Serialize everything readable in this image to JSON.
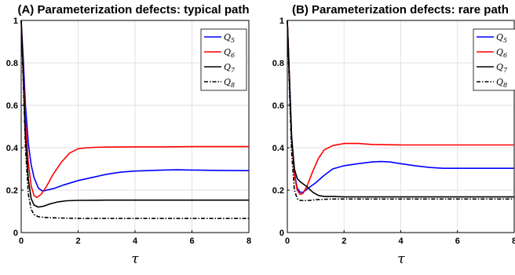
{
  "chart_data": [
    {
      "type": "line",
      "title": "(A) Parameterization defects: typical path",
      "xlabel": "τ",
      "ylabel": "",
      "xlim": [
        0,
        8
      ],
      "ylim": [
        0,
        1
      ],
      "xticks": [
        "0",
        "2",
        "4",
        "6",
        "8"
      ],
      "yticks": [
        "0",
        "0.2",
        "0.4",
        "0.6",
        "0.8",
        "1"
      ],
      "grid": true,
      "legend": "top-right",
      "series": [
        {
          "name": "Q",
          "sub": "5",
          "color": "#0000ff",
          "dash": "solid",
          "x": [
            0,
            0.08,
            0.15,
            0.25,
            0.35,
            0.45,
            0.6,
            0.75,
            0.9,
            1.2,
            1.5,
            2,
            2.5,
            3,
            3.5,
            4,
            5,
            5.5,
            6,
            7,
            8
          ],
          "y": [
            1,
            0.8,
            0.6,
            0.42,
            0.32,
            0.26,
            0.21,
            0.195,
            0.2,
            0.21,
            0.225,
            0.245,
            0.26,
            0.275,
            0.285,
            0.29,
            0.295,
            0.296,
            0.295,
            0.293,
            0.292
          ]
        },
        {
          "name": "Q",
          "sub": "6",
          "color": "#ff0000",
          "dash": "solid",
          "x": [
            0,
            0.08,
            0.15,
            0.25,
            0.35,
            0.45,
            0.55,
            0.7,
            0.9,
            1.1,
            1.4,
            1.7,
            2,
            2.3,
            2.6,
            3,
            4,
            5,
            6,
            7,
            8
          ],
          "y": [
            1,
            0.75,
            0.52,
            0.33,
            0.22,
            0.175,
            0.165,
            0.18,
            0.22,
            0.27,
            0.33,
            0.375,
            0.395,
            0.4,
            0.402,
            0.403,
            0.404,
            0.404,
            0.405,
            0.405,
            0.405
          ]
        },
        {
          "name": "Q",
          "sub": "7",
          "color": "#000000",
          "dash": "solid",
          "x": [
            0,
            0.08,
            0.15,
            0.25,
            0.35,
            0.45,
            0.6,
            0.8,
            1,
            1.3,
            1.6,
            2,
            3,
            4,
            5,
            6,
            7,
            8
          ],
          "y": [
            1,
            0.72,
            0.45,
            0.25,
            0.16,
            0.13,
            0.12,
            0.125,
            0.135,
            0.145,
            0.15,
            0.152,
            0.153,
            0.153,
            0.153,
            0.153,
            0.153,
            0.153
          ]
        },
        {
          "name": "Q",
          "sub": "8",
          "color": "#000000",
          "dash": "dashdot",
          "x": [
            0,
            0.08,
            0.15,
            0.25,
            0.35,
            0.45,
            0.6,
            0.8,
            1,
            1.5,
            2,
            3,
            4,
            6,
            8
          ],
          "y": [
            1,
            0.68,
            0.4,
            0.18,
            0.11,
            0.085,
            0.075,
            0.072,
            0.07,
            0.068,
            0.067,
            0.067,
            0.067,
            0.067,
            0.067
          ]
        }
      ]
    },
    {
      "type": "line",
      "title": "(B) Parameterization defects: rare path",
      "xlabel": "τ",
      "ylabel": "",
      "xlim": [
        0,
        8
      ],
      "ylim": [
        0,
        1
      ],
      "xticks": [
        "0",
        "2",
        "4",
        "6",
        "8"
      ],
      "yticks": [
        "0",
        "0.2",
        "0.4",
        "0.6",
        "0.8",
        "1"
      ],
      "grid": true,
      "legend": "top-right",
      "series": [
        {
          "name": "Q",
          "sub": "5",
          "color": "#0000ff",
          "dash": "solid",
          "x": [
            0,
            0.08,
            0.15,
            0.25,
            0.35,
            0.45,
            0.55,
            0.65,
            0.8,
            1,
            1.3,
            1.6,
            2,
            2.5,
            3,
            3.3,
            3.6,
            4,
            4.5,
            5,
            5.5,
            6,
            7,
            8
          ],
          "y": [
            1,
            0.72,
            0.46,
            0.28,
            0.21,
            0.19,
            0.19,
            0.2,
            0.215,
            0.235,
            0.27,
            0.3,
            0.315,
            0.325,
            0.333,
            0.335,
            0.333,
            0.325,
            0.315,
            0.307,
            0.303,
            0.303,
            0.303,
            0.303
          ]
        },
        {
          "name": "Q",
          "sub": "6",
          "color": "#ff0000",
          "dash": "solid",
          "x": [
            0,
            0.08,
            0.15,
            0.25,
            0.35,
            0.45,
            0.55,
            0.7,
            0.9,
            1.1,
            1.3,
            1.6,
            2,
            2.5,
            3,
            4,
            5,
            6,
            7,
            8
          ],
          "y": [
            1,
            0.7,
            0.45,
            0.27,
            0.2,
            0.18,
            0.185,
            0.22,
            0.29,
            0.35,
            0.39,
            0.41,
            0.42,
            0.42,
            0.415,
            0.413,
            0.413,
            0.413,
            0.413,
            0.413
          ]
        },
        {
          "name": "Q",
          "sub": "7",
          "color": "#000000",
          "dash": "solid",
          "x": [
            0,
            0.08,
            0.15,
            0.25,
            0.35,
            0.45,
            0.55,
            0.7,
            0.9,
            1.1,
            1.3,
            1.6,
            2,
            3,
            4,
            5,
            6,
            7,
            8
          ],
          "y": [
            1,
            0.7,
            0.45,
            0.3,
            0.255,
            0.24,
            0.23,
            0.215,
            0.19,
            0.175,
            0.17,
            0.17,
            0.168,
            0.168,
            0.168,
            0.168,
            0.168,
            0.168,
            0.168
          ]
        },
        {
          "name": "Q",
          "sub": "8",
          "color": "#000000",
          "dash": "dashdot",
          "x": [
            0,
            0.08,
            0.15,
            0.25,
            0.35,
            0.45,
            0.6,
            0.8,
            1,
            1.5,
            2,
            3,
            4,
            5,
            6,
            7,
            8
          ],
          "y": [
            1,
            0.65,
            0.38,
            0.2,
            0.16,
            0.152,
            0.15,
            0.152,
            0.155,
            0.158,
            0.158,
            0.158,
            0.158,
            0.158,
            0.158,
            0.158,
            0.158
          ]
        }
      ]
    }
  ]
}
